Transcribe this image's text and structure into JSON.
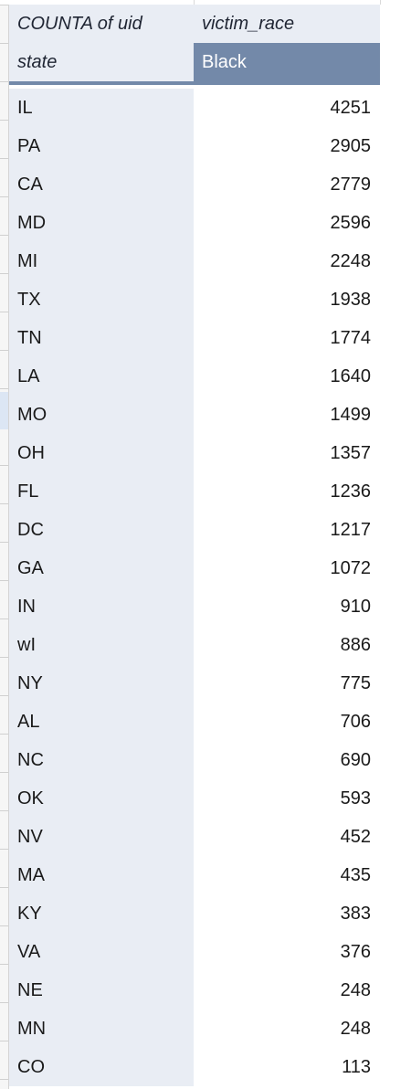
{
  "pivot": {
    "header_row1": {
      "values_label": "COUNTA of uid",
      "column_field": "victim_race"
    },
    "header_row2": {
      "row_field": "state",
      "column_value": "Black"
    },
    "rows": [
      {
        "state": "IL",
        "count": "4251"
      },
      {
        "state": "PA",
        "count": "2905"
      },
      {
        "state": "CA",
        "count": "2779"
      },
      {
        "state": "MD",
        "count": "2596"
      },
      {
        "state": "MI",
        "count": "2248"
      },
      {
        "state": "TX",
        "count": "1938"
      },
      {
        "state": "TN",
        "count": "1774"
      },
      {
        "state": "LA",
        "count": "1640"
      },
      {
        "state": "MO",
        "count": "1499"
      },
      {
        "state": "OH",
        "count": "1357"
      },
      {
        "state": "FL",
        "count": "1236"
      },
      {
        "state": "DC",
        "count": "1217"
      },
      {
        "state": "GA",
        "count": "1072"
      },
      {
        "state": "IN",
        "count": "910"
      },
      {
        "state": "wI",
        "count": "886"
      },
      {
        "state": "NY",
        "count": "775"
      },
      {
        "state": "AL",
        "count": "706"
      },
      {
        "state": "NC",
        "count": "690"
      },
      {
        "state": "OK",
        "count": "593"
      },
      {
        "state": "NV",
        "count": "452"
      },
      {
        "state": "MA",
        "count": "435"
      },
      {
        "state": "KY",
        "count": "383"
      },
      {
        "state": "VA",
        "count": "376"
      },
      {
        "state": "NE",
        "count": "248"
      },
      {
        "state": "MN",
        "count": "248"
      },
      {
        "state": "CO",
        "count": "113"
      }
    ]
  },
  "colors": {
    "header_fill": "#e9edf4",
    "column_value_fill": "#7389a9",
    "row_label_fill": "#e9edf4"
  }
}
